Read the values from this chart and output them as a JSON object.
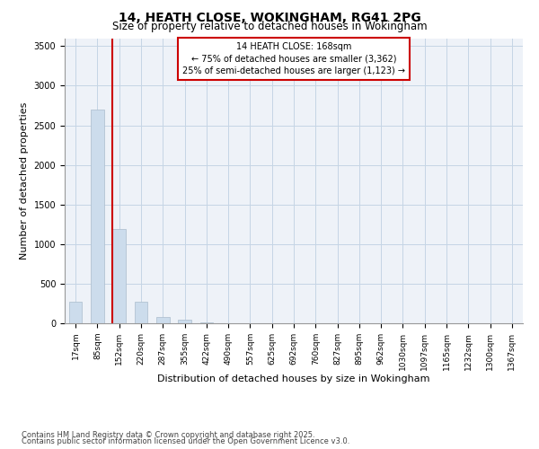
{
  "title_line1": "14, HEATH CLOSE, WOKINGHAM, RG41 2PG",
  "title_line2": "Size of property relative to detached houses in Wokingham",
  "xlabel": "Distribution of detached houses by size in Wokingham",
  "ylabel": "Number of detached properties",
  "categories": [
    "17sqm",
    "85sqm",
    "152sqm",
    "220sqm",
    "287sqm",
    "355sqm",
    "422sqm",
    "490sqm",
    "557sqm",
    "625sqm",
    "692sqm",
    "760sqm",
    "827sqm",
    "895sqm",
    "962sqm",
    "1030sqm",
    "1097sqm",
    "1165sqm",
    "1232sqm",
    "1300sqm",
    "1367sqm"
  ],
  "values": [
    270,
    2700,
    1190,
    270,
    85,
    40,
    10,
    0,
    0,
    0,
    0,
    0,
    0,
    0,
    0,
    0,
    0,
    0,
    0,
    0,
    0
  ],
  "bar_color": "#ccdcec",
  "bar_edge_color": "#aabccc",
  "vline_color": "#cc0000",
  "annotation_title": "14 HEATH CLOSE: 168sqm",
  "annotation_line2": "← 75% of detached houses are smaller (3,362)",
  "annotation_line3": "25% of semi-detached houses are larger (1,123) →",
  "annotation_box_color": "#cc0000",
  "ylim": [
    0,
    3600
  ],
  "yticks": [
    0,
    500,
    1000,
    1500,
    2000,
    2500,
    3000,
    3500
  ],
  "footnote1": "Contains HM Land Registry data © Crown copyright and database right 2025.",
  "footnote2": "Contains public sector information licensed under the Open Government Licence v3.0.",
  "plot_bg_color": "#eef2f8",
  "fig_bg_color": "#ffffff",
  "grid_color": "#c5d5e5",
  "title1_fontsize": 10,
  "title2_fontsize": 8.5,
  "tick_fontsize": 6.5,
  "ylabel_fontsize": 8,
  "xlabel_fontsize": 8,
  "annot_fontsize": 7,
  "footnote_fontsize": 6
}
